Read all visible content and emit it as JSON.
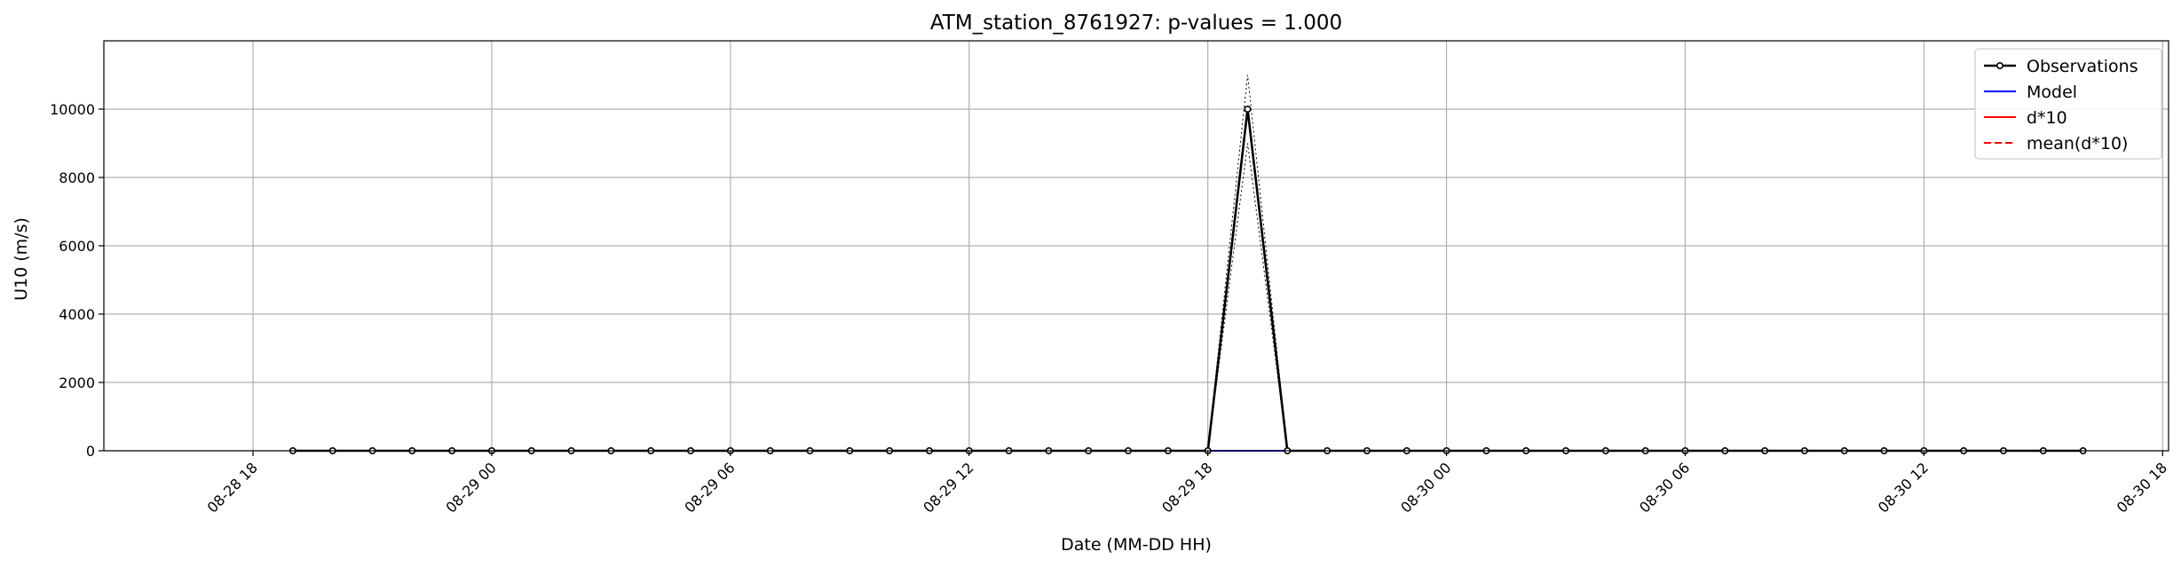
{
  "chart_data": {
    "type": "line",
    "title": "ATM_station_8761927: p-values = 1.000",
    "xlabel": "Date (MM-DD HH)",
    "ylabel": "U10 (m/s)",
    "ylim": [
      0,
      12000
    ],
    "yticks": [
      0,
      2000,
      4000,
      6000,
      8000,
      10000
    ],
    "xlim_hours": [
      -7.5,
      96.3
    ],
    "xticks": [
      {
        "hours": 0,
        "label": "08-28 18"
      },
      {
        "hours": 12,
        "label": "08-29 00"
      },
      {
        "hours": 24,
        "label": "08-29 06"
      },
      {
        "hours": 36,
        "label": "08-29 12"
      },
      {
        "hours": 48,
        "label": "08-29 18"
      },
      {
        "hours": 60,
        "label": "08-30 00"
      },
      {
        "hours": 72,
        "label": "08-30 06"
      },
      {
        "hours": 84,
        "label": "08-30 12"
      },
      {
        "hours": 96,
        "label": "08-30 18"
      }
    ],
    "grid": true,
    "legend_position": "top-right",
    "x_hours": [
      2,
      4,
      6,
      8,
      10,
      12,
      14,
      16,
      18,
      20,
      22,
      24,
      26,
      28,
      30,
      32,
      34,
      36,
      38,
      40,
      42,
      44,
      46,
      48,
      50,
      52,
      54,
      56,
      58,
      60,
      62,
      64,
      66,
      68,
      70,
      72,
      74,
      76,
      78,
      80,
      82,
      84,
      86,
      88,
      90,
      92
    ],
    "series": [
      {
        "name": "Observations",
        "color": "#000000",
        "style": "solid-marker",
        "values": [
          0,
          0,
          0,
          0,
          0,
          0,
          0,
          0,
          0,
          0,
          0,
          0,
          0,
          0,
          0,
          0,
          0,
          0,
          0,
          0,
          0,
          0,
          0,
          0,
          10000,
          0,
          0,
          0,
          0,
          0,
          0,
          0,
          0,
          0,
          0,
          0,
          0,
          0,
          0,
          0,
          0,
          0,
          0,
          0,
          0,
          0
        ]
      },
      {
        "name": "Model",
        "color": "#0000ff",
        "style": "solid",
        "values": [
          0,
          0,
          0,
          0,
          0,
          0,
          0,
          0,
          0,
          0,
          0,
          0,
          0,
          0,
          0,
          0,
          0,
          0,
          0,
          0,
          0,
          0,
          0,
          0,
          0,
          0,
          0,
          0,
          0,
          0,
          0,
          0,
          0,
          0,
          0,
          0,
          0,
          0,
          0,
          0,
          0,
          0,
          0,
          0,
          0,
          0
        ]
      },
      {
        "name": "d*10",
        "color": "#ff0000",
        "style": "solid",
        "values": [
          0,
          0,
          0,
          0,
          0,
          0,
          0,
          0,
          0,
          0,
          0,
          0,
          0,
          0,
          0,
          0,
          0,
          0,
          0,
          0,
          0,
          0,
          0,
          0,
          0,
          0,
          0,
          0,
          0,
          0,
          0,
          0,
          0,
          0,
          0,
          0,
          0,
          0,
          0,
          0,
          0,
          0,
          0,
          0,
          0,
          0
        ]
      },
      {
        "name": "mean(d*10)",
        "color": "#ff0000",
        "style": "dashed",
        "values": [
          0,
          0,
          0,
          0,
          0,
          0,
          0,
          0,
          0,
          0,
          0,
          0,
          0,
          0,
          0,
          0,
          0,
          0,
          0,
          0,
          0,
          0,
          0,
          0,
          0,
          0,
          0,
          0,
          0,
          0,
          0,
          0,
          0,
          0,
          0,
          0,
          0,
          0,
          0,
          0,
          0,
          0,
          0,
          0,
          0,
          0
        ]
      }
    ],
    "uncertainty_bounds": {
      "color": "#000000",
      "style": "dotted",
      "upper": [
        0,
        0,
        0,
        0,
        0,
        0,
        0,
        0,
        0,
        0,
        0,
        0,
        0,
        0,
        0,
        0,
        0,
        0,
        0,
        0,
        0,
        0,
        0,
        0,
        11000,
        0,
        0,
        0,
        0,
        0,
        0,
        0,
        0,
        0,
        0,
        0,
        0,
        0,
        0,
        0,
        0,
        0,
        0,
        0,
        0,
        0
      ],
      "lower": [
        0,
        0,
        0,
        0,
        0,
        0,
        0,
        0,
        0,
        0,
        0,
        0,
        0,
        0,
        0,
        0,
        0,
        0,
        0,
        0,
        0,
        0,
        0,
        0,
        9000,
        0,
        0,
        0,
        0,
        0,
        0,
        0,
        0,
        0,
        0,
        0,
        0,
        0,
        0,
        0,
        0,
        0,
        0,
        0,
        0,
        0
      ]
    }
  }
}
